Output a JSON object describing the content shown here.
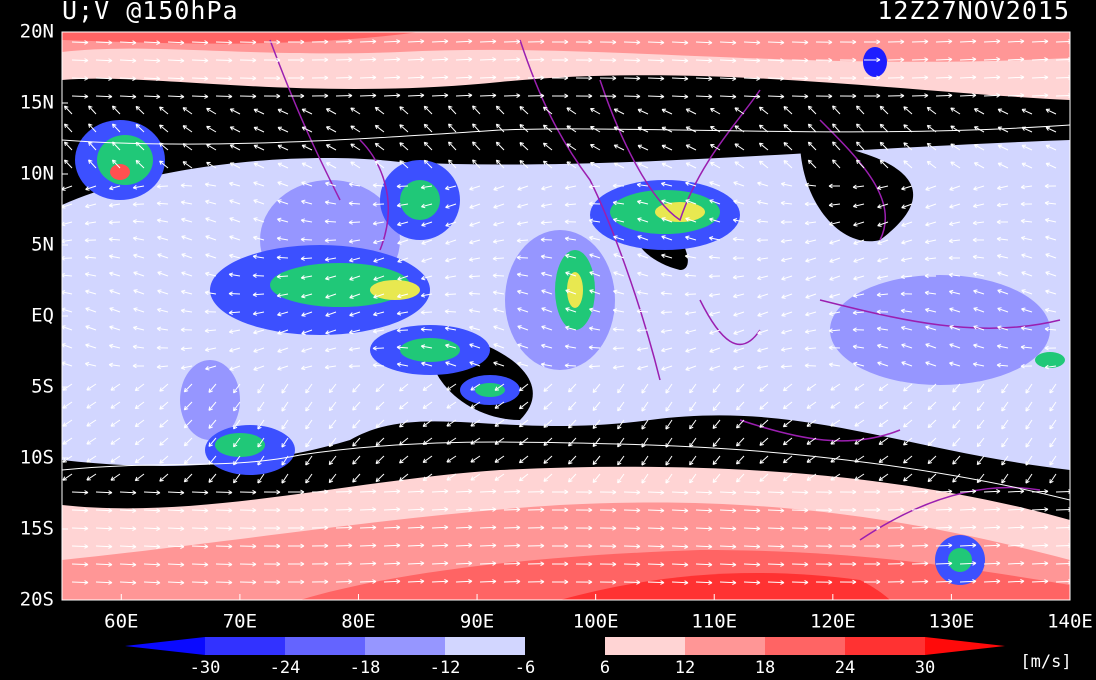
{
  "header": {
    "title": "U;V @150hPa",
    "time": "12Z27NOV2015"
  },
  "map": {
    "lonlim": [
      55,
      140
    ],
    "latlim": [
      -20,
      20
    ],
    "lon_ticks": [
      {
        "value": 60,
        "label": "60E"
      },
      {
        "value": 70,
        "label": "70E"
      },
      {
        "value": 80,
        "label": "80E"
      },
      {
        "value": 90,
        "label": "90E"
      },
      {
        "value": 100,
        "label": "100E"
      },
      {
        "value": 110,
        "label": "110E"
      },
      {
        "value": 120,
        "label": "120E"
      },
      {
        "value": 130,
        "label": "130E"
      },
      {
        "value": 140,
        "label": "140E"
      }
    ],
    "lat_ticks": [
      {
        "value": 20,
        "label": "20N"
      },
      {
        "value": 15,
        "label": "15N"
      },
      {
        "value": 10,
        "label": "10N"
      },
      {
        "value": 5,
        "label": "5N"
      },
      {
        "value": 0,
        "label": "EQ"
      },
      {
        "value": -5,
        "label": "5S"
      },
      {
        "value": -10,
        "label": "10S"
      },
      {
        "value": -15,
        "label": "15S"
      },
      {
        "value": -20,
        "label": "20S"
      }
    ]
  },
  "colorbar": {
    "levels": [
      -30,
      -24,
      -18,
      -12,
      -6,
      6,
      12,
      18,
      24,
      30
    ],
    "colors": [
      "#0a0aff",
      "#3232ff",
      "#6464ff",
      "#9696ff",
      "#d2d6ff",
      "#000000",
      "#ffd4d4",
      "#ff9696",
      "#ff6464",
      "#ff3232",
      "#ff0a0a"
    ],
    "unit": "[m/s]"
  }
}
